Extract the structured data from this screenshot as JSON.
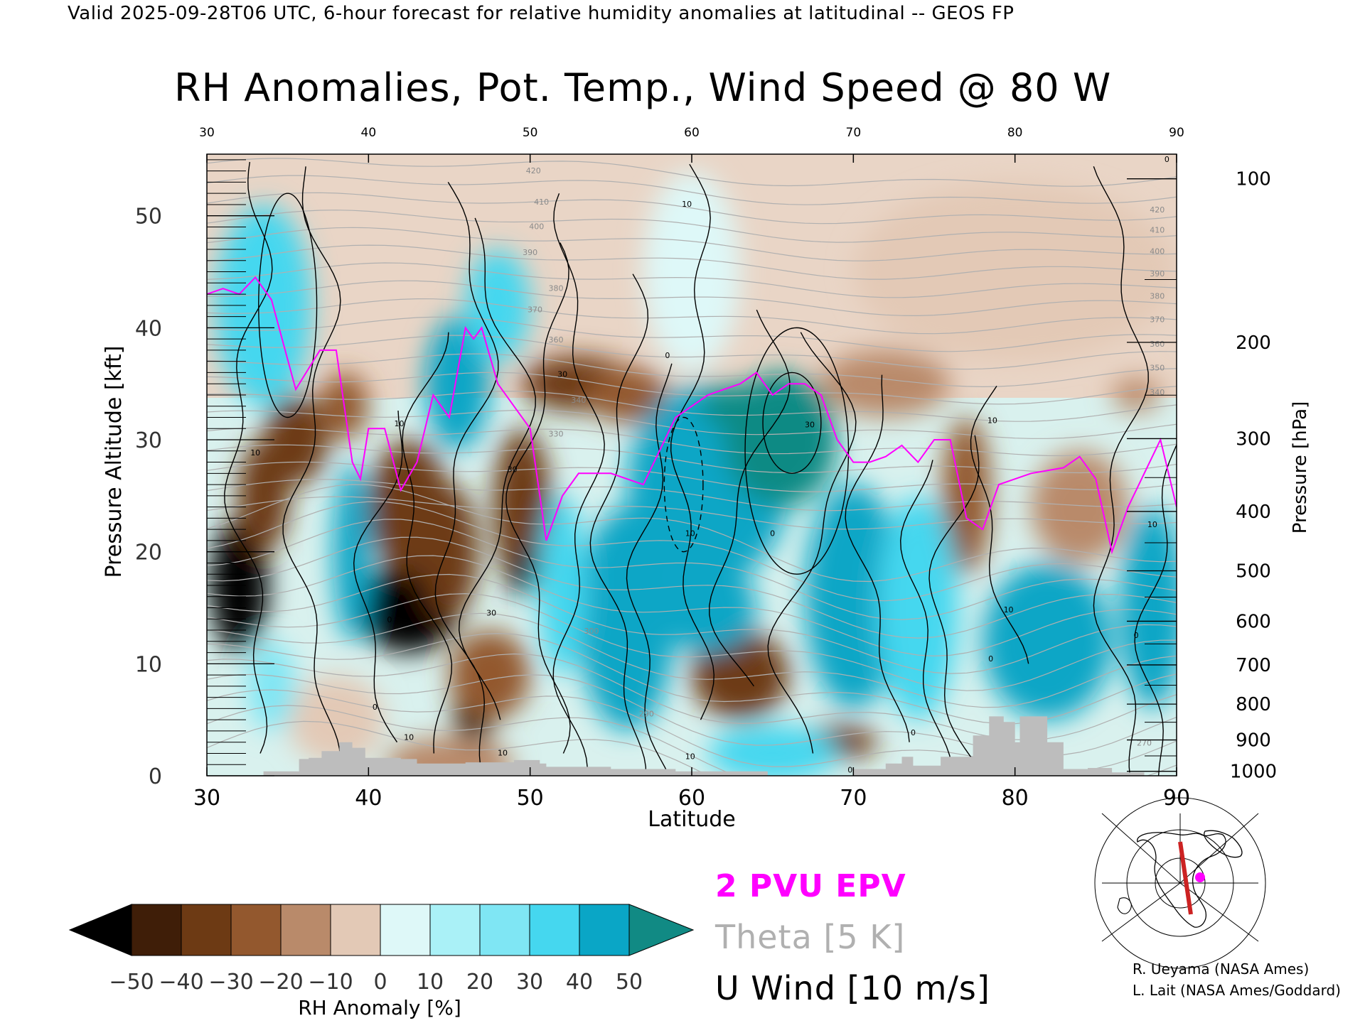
{
  "header": {
    "valid_line": "Valid 2025-09-28T06 UTC, 6-hour forecast for relative humidity anomalies at latitudinal -- GEOS FP",
    "title": "RH Anomalies, Pot. Temp., Wind Speed @ 80 W"
  },
  "chart_data": {
    "type": "heatmap",
    "title": "RH Anomalies, Pot. Temp., Wind Speed @ 80 W",
    "xlabel": "Latitude",
    "ylabel_left": "Pressure Altitude [kft]",
    "ylabel_right": "Pressure [hPa]",
    "xlim": [
      30,
      90
    ],
    "ylim": [
      0,
      55.5
    ],
    "x_ticks": [
      30,
      40,
      50,
      60,
      70,
      80,
      90
    ],
    "y_ticks_left": [
      0,
      10,
      20,
      30,
      40,
      50
    ],
    "y_ticks_right": [
      {
        "label": "100",
        "kft": 53.3
      },
      {
        "label": "200",
        "kft": 38.7
      },
      {
        "label": "300",
        "kft": 30.1
      },
      {
        "label": "400",
        "kft": 23.6
      },
      {
        "label": "500",
        "kft": 18.3
      },
      {
        "label": "600",
        "kft": 13.8
      },
      {
        "label": "700",
        "kft": 9.9
      },
      {
        "label": "800",
        "kft": 6.4
      },
      {
        "label": "900",
        "kft": 3.2
      },
      {
        "label": "1000",
        "kft": 0.4
      }
    ],
    "theta_labels": [
      {
        "label": "420",
        "lat": 50.2,
        "kft": 53.8
      },
      {
        "label": "410",
        "lat": 50.7,
        "kft": 51.0
      },
      {
        "label": "400",
        "lat": 50.4,
        "kft": 48.8
      },
      {
        "label": "390",
        "lat": 50.0,
        "kft": 46.5
      },
      {
        "label": "380",
        "lat": 51.6,
        "kft": 43.3
      },
      {
        "label": "370",
        "lat": 50.3,
        "kft": 41.4
      },
      {
        "label": "360",
        "lat": 51.6,
        "kft": 38.7
      },
      {
        "label": "340",
        "lat": 53.0,
        "kft": 33.3
      },
      {
        "label": "330",
        "lat": 51.6,
        "kft": 30.3
      },
      {
        "label": "300",
        "lat": 53.8,
        "kft": 12.7
      },
      {
        "label": "290",
        "lat": 57.2,
        "kft": 5.3
      },
      {
        "label": "270",
        "lat": 88.0,
        "kft": 2.7
      },
      {
        "label": "420",
        "lat": 88.8,
        "kft": 50.3
      },
      {
        "label": "410",
        "lat": 88.8,
        "kft": 48.5
      },
      {
        "label": "400",
        "lat": 88.8,
        "kft": 46.6
      },
      {
        "label": "390",
        "lat": 88.8,
        "kft": 44.6
      },
      {
        "label": "380",
        "lat": 88.8,
        "kft": 42.6
      },
      {
        "label": "370",
        "lat": 88.8,
        "kft": 40.5
      },
      {
        "label": "360",
        "lat": 88.8,
        "kft": 38.3
      },
      {
        "label": "350",
        "lat": 88.8,
        "kft": 36.2
      },
      {
        "label": "340",
        "lat": 88.8,
        "kft": 34.0
      }
    ],
    "wind_labels": [
      {
        "label": "10",
        "lat": 33.0,
        "kft": 28.6
      },
      {
        "label": "10",
        "lat": 41.9,
        "kft": 31.2
      },
      {
        "label": "30",
        "lat": 52.0,
        "kft": 35.6
      },
      {
        "label": "30",
        "lat": 48.9,
        "kft": 27.1
      },
      {
        "label": "30",
        "lat": 47.6,
        "kft": 14.3
      },
      {
        "label": "0",
        "lat": 41.3,
        "kft": 13.7
      },
      {
        "label": "0",
        "lat": 40.4,
        "kft": 5.9
      },
      {
        "label": "10",
        "lat": 42.5,
        "kft": 3.2
      },
      {
        "label": "10",
        "lat": 48.3,
        "kft": 1.8
      },
      {
        "label": "10",
        "lat": 59.7,
        "kft": 50.8
      },
      {
        "label": "0",
        "lat": 58.5,
        "kft": 37.3
      },
      {
        "label": "10",
        "lat": 59.9,
        "kft": 21.4
      },
      {
        "label": "10",
        "lat": 59.9,
        "kft": 1.5
      },
      {
        "label": "30",
        "lat": 67.3,
        "kft": 31.1
      },
      {
        "label": "0",
        "lat": 65.0,
        "kft": 21.4
      },
      {
        "label": "0",
        "lat": 69.8,
        "kft": 0.3
      },
      {
        "label": "10",
        "lat": 78.6,
        "kft": 31.5
      },
      {
        "label": "10",
        "lat": 79.6,
        "kft": 14.6
      },
      {
        "label": "0",
        "lat": 78.5,
        "kft": 10.2
      },
      {
        "label": "0",
        "lat": 73.7,
        "kft": 3.6
      },
      {
        "label": "0",
        "lat": 89.4,
        "kft": 54.8
      },
      {
        "label": "0",
        "lat": 87.5,
        "kft": 12.3
      },
      {
        "label": "10",
        "lat": 88.5,
        "kft": 22.2
      }
    ],
    "rh_anomaly_blobs": [
      {
        "lat": 32.0,
        "kft": 17.0,
        "value": -50,
        "rx": 1.8,
        "ry": 6.0
      },
      {
        "lat": 33.5,
        "kft": 25.0,
        "value": -40,
        "rx": 1.6,
        "ry": 5.0
      },
      {
        "lat": 35.5,
        "kft": 30.0,
        "value": -40,
        "rx": 2.0,
        "ry": 4.0
      },
      {
        "lat": 38.5,
        "kft": 33.0,
        "value": -25,
        "rx": 1.5,
        "ry": 3.0
      },
      {
        "lat": 42.5,
        "kft": 15.0,
        "value": -50,
        "rx": 3.2,
        "ry": 4.0
      },
      {
        "lat": 42.5,
        "kft": 24.0,
        "value": -40,
        "rx": 2.5,
        "ry": 6.0
      },
      {
        "lat": 46.5,
        "kft": 6.0,
        "value": -50,
        "rx": 1.2,
        "ry": 3.5
      },
      {
        "lat": 45.0,
        "kft": 20.0,
        "value": -35,
        "rx": 1.8,
        "ry": 6.0
      },
      {
        "lat": 49.5,
        "kft": 24.0,
        "value": -40,
        "rx": 1.8,
        "ry": 7.0
      },
      {
        "lat": 49.5,
        "kft": 18.0,
        "value": -50,
        "rx": 0.8,
        "ry": 2.0
      },
      {
        "lat": 47.5,
        "kft": 9.0,
        "value": -30,
        "rx": 2.5,
        "ry": 4.0
      },
      {
        "lat": 53.0,
        "kft": 35.0,
        "value": -35,
        "rx": 3.5,
        "ry": 2.5
      },
      {
        "lat": 56.0,
        "kft": 34.0,
        "value": -25,
        "rx": 2.5,
        "ry": 2.5
      },
      {
        "lat": 63.0,
        "kft": 8.0,
        "value": -50,
        "rx": 0.6,
        "ry": 1.5
      },
      {
        "lat": 63.0,
        "kft": 9.0,
        "value": -35,
        "rx": 3.0,
        "ry": 4.0
      },
      {
        "lat": 69.0,
        "kft": 3.0,
        "value": -35,
        "rx": 2.5,
        "ry": 1.5
      },
      {
        "lat": 72.0,
        "kft": 35.0,
        "value": -20,
        "rx": 4.0,
        "ry": 3.0
      },
      {
        "lat": 77.0,
        "kft": 25.0,
        "value": -25,
        "rx": 1.5,
        "ry": 7.0
      },
      {
        "lat": 84.0,
        "kft": 24.0,
        "value": -15,
        "rx": 3.0,
        "ry": 5.0
      },
      {
        "lat": 87.5,
        "kft": 34.0,
        "value": -20,
        "rx": 1.5,
        "ry": 1.5
      },
      {
        "lat": 80.0,
        "kft": 45.0,
        "value": -10,
        "rx": 10.0,
        "ry": 8.0
      },
      {
        "lat": 38.0,
        "kft": 5.0,
        "value": -10,
        "rx": 3.0,
        "ry": 4.0
      },
      {
        "lat": 45.0,
        "kft": 1.0,
        "value": -15,
        "rx": 4.0,
        "ry": 2.5
      },
      {
        "lat": 33.5,
        "kft": 42.0,
        "value": 35,
        "rx": 3.0,
        "ry": 9.0
      },
      {
        "lat": 45.5,
        "kft": 35.0,
        "value": 40,
        "rx": 2.0,
        "ry": 6.0
      },
      {
        "lat": 39.0,
        "kft": 20.0,
        "value": 40,
        "rx": 1.2,
        "ry": 8.0
      },
      {
        "lat": 48.0,
        "kft": 42.0,
        "value": 30,
        "rx": 2.0,
        "ry": 5.0
      },
      {
        "lat": 61.0,
        "kft": 26.0,
        "value": 48,
        "rx": 5.0,
        "ry": 9.0
      },
      {
        "lat": 65.5,
        "kft": 30.0,
        "value": 50,
        "rx": 3.5,
        "ry": 6.0
      },
      {
        "lat": 62.5,
        "kft": 33.0,
        "value": 50,
        "rx": 2.0,
        "ry": 2.0
      },
      {
        "lat": 56.0,
        "kft": 14.0,
        "value": 40,
        "rx": 3.0,
        "ry": 10.0
      },
      {
        "lat": 61.0,
        "kft": 15.0,
        "value": 40,
        "rx": 3.0,
        "ry": 4.0
      },
      {
        "lat": 70.0,
        "kft": 16.0,
        "value": 40,
        "rx": 3.0,
        "ry": 10.0
      },
      {
        "lat": 74.0,
        "kft": 15.0,
        "value": 35,
        "rx": 2.5,
        "ry": 10.0
      },
      {
        "lat": 82.0,
        "kft": 12.0,
        "value": 40,
        "rx": 4.0,
        "ry": 7.0
      },
      {
        "lat": 88.5,
        "kft": 15.0,
        "value": 40,
        "rx": 2.0,
        "ry": 9.0
      },
      {
        "lat": 65.0,
        "kft": 2.0,
        "value": 35,
        "rx": 4.0,
        "ry": 2.5
      },
      {
        "lat": 52.0,
        "kft": 17.0,
        "value": 30,
        "rx": 1.5,
        "ry": 8.0
      },
      {
        "lat": 34.0,
        "kft": 8.0,
        "value": 25,
        "rx": 1.5,
        "ry": 4.0
      },
      {
        "lat": 60.0,
        "kft": 45.0,
        "value": 8,
        "rx": 3.0,
        "ry": 9.0
      }
    ],
    "epv_2pvu_line": [
      [
        30,
        43
      ],
      [
        31,
        43.5
      ],
      [
        32,
        43
      ],
      [
        33,
        44.5
      ],
      [
        34,
        42.5
      ],
      [
        35.5,
        34.5
      ],
      [
        37,
        38
      ],
      [
        38,
        38
      ],
      [
        39,
        28
      ],
      [
        39.5,
        26.5
      ],
      [
        40,
        31
      ],
      [
        41,
        31
      ],
      [
        42,
        25.5
      ],
      [
        43,
        28
      ],
      [
        44,
        34
      ],
      [
        45,
        32
      ],
      [
        46,
        40
      ],
      [
        46.5,
        39
      ],
      [
        47,
        40
      ],
      [
        48,
        35
      ],
      [
        49,
        33
      ],
      [
        50,
        31
      ],
      [
        51,
        21
      ],
      [
        52,
        25
      ],
      [
        53,
        27
      ],
      [
        55,
        27
      ],
      [
        57,
        26
      ],
      [
        59,
        32
      ],
      [
        61,
        34
      ],
      [
        63,
        35
      ],
      [
        64,
        36
      ],
      [
        65,
        34
      ],
      [
        66,
        35
      ],
      [
        67,
        35
      ],
      [
        68,
        34
      ],
      [
        69,
        30
      ],
      [
        70,
        28
      ],
      [
        71,
        28
      ],
      [
        72,
        28.5
      ],
      [
        73,
        29.5
      ],
      [
        74,
        28
      ],
      [
        75,
        30
      ],
      [
        76,
        30
      ],
      [
        77,
        23
      ],
      [
        78,
        22
      ],
      [
        79,
        26
      ],
      [
        80,
        26.5
      ],
      [
        81,
        27
      ],
      [
        83,
        27.5
      ],
      [
        84,
        28.5
      ],
      [
        85,
        26.5
      ],
      [
        86,
        20
      ],
      [
        87,
        24
      ],
      [
        88,
        27
      ],
      [
        89,
        30
      ],
      [
        90,
        24
      ]
    ],
    "terrain": [
      [
        30,
        0
      ],
      [
        33.5,
        0
      ],
      [
        33.5,
        0.4
      ],
      [
        35.7,
        0.4
      ],
      [
        35.7,
        1.5
      ],
      [
        36.3,
        1.5
      ],
      [
        36.3,
        1.6
      ],
      [
        37.1,
        1.6
      ],
      [
        37.1,
        2.2
      ],
      [
        38.2,
        2.2
      ],
      [
        38.2,
        3.0
      ],
      [
        39.0,
        3.0
      ],
      [
        39.0,
        2.5
      ],
      [
        39.8,
        2.5
      ],
      [
        39.8,
        1.6
      ],
      [
        42.0,
        1.6
      ],
      [
        42.0,
        1.5
      ],
      [
        43.0,
        1.5
      ],
      [
        43.0,
        1.1
      ],
      [
        46.0,
        1.1
      ],
      [
        46.0,
        1.2
      ],
      [
        49.0,
        1.2
      ],
      [
        49.0,
        1.4
      ],
      [
        50.6,
        1.4
      ],
      [
        50.6,
        1.1
      ],
      [
        51.0,
        1.1
      ],
      [
        51.0,
        0.8
      ],
      [
        55.0,
        0.8
      ],
      [
        55.0,
        0.6
      ],
      [
        59.0,
        0.6
      ],
      [
        59.0,
        0.4
      ],
      [
        64.7,
        0.4
      ],
      [
        64.7,
        0
      ],
      [
        70.0,
        0
      ],
      [
        70.0,
        0.6
      ],
      [
        72.0,
        0.6
      ],
      [
        72.0,
        1.1
      ],
      [
        73.0,
        1.1
      ],
      [
        73.0,
        1.7
      ],
      [
        73.7,
        1.7
      ],
      [
        73.7,
        0.9
      ],
      [
        75.4,
        0.9
      ],
      [
        75.4,
        1.7
      ],
      [
        77.4,
        1.7
      ],
      [
        77.4,
        3.6
      ],
      [
        78.4,
        3.6
      ],
      [
        78.4,
        5.3
      ],
      [
        79.3,
        5.3
      ],
      [
        79.3,
        4.8
      ],
      [
        80.0,
        4.8
      ],
      [
        80.0,
        3.0
      ],
      [
        80.3,
        3.0
      ],
      [
        80.3,
        5.3
      ],
      [
        82.0,
        5.3
      ],
      [
        82.0,
        3.0
      ],
      [
        83.0,
        3.0
      ],
      [
        83.0,
        0.6
      ],
      [
        84.5,
        0.6
      ],
      [
        84.5,
        0.7
      ],
      [
        86.0,
        0.7
      ],
      [
        86.0,
        0.3
      ],
      [
        88.0,
        0.3
      ],
      [
        88.0,
        0
      ],
      [
        90,
        0
      ]
    ],
    "colorbar": {
      "label": "RH Anomaly [%]",
      "ticks": [
        "−50",
        "−40",
        "−30",
        "−20",
        "−10",
        "0",
        "10",
        "20",
        "30",
        "40",
        "50"
      ],
      "colors": [
        "#000000",
        "#3f1e08",
        "#6d3a14",
        "#93582e",
        "#b98a6a",
        "#e3c9b6",
        "#def8f8",
        "#aaf1f7",
        "#7fe6f4",
        "#45d7ef",
        "#0aa6c6",
        "#118a84"
      ]
    }
  },
  "legend": {
    "epv": "2 PVU EPV",
    "theta": "Theta [5 K]",
    "uwind": "U Wind [10 m/s]",
    "epv_color": "#ff00ff",
    "theta_color": "#b0b0b0"
  },
  "credits": {
    "line1": "R. Ueyama (NASA Ames)",
    "line2": "L. Lait (NASA Ames/Goddard)"
  },
  "inset_map": {
    "description_icon": "north-polar-map-icon",
    "track_color": "#cc2222",
    "point_color": "#ff00ff"
  }
}
